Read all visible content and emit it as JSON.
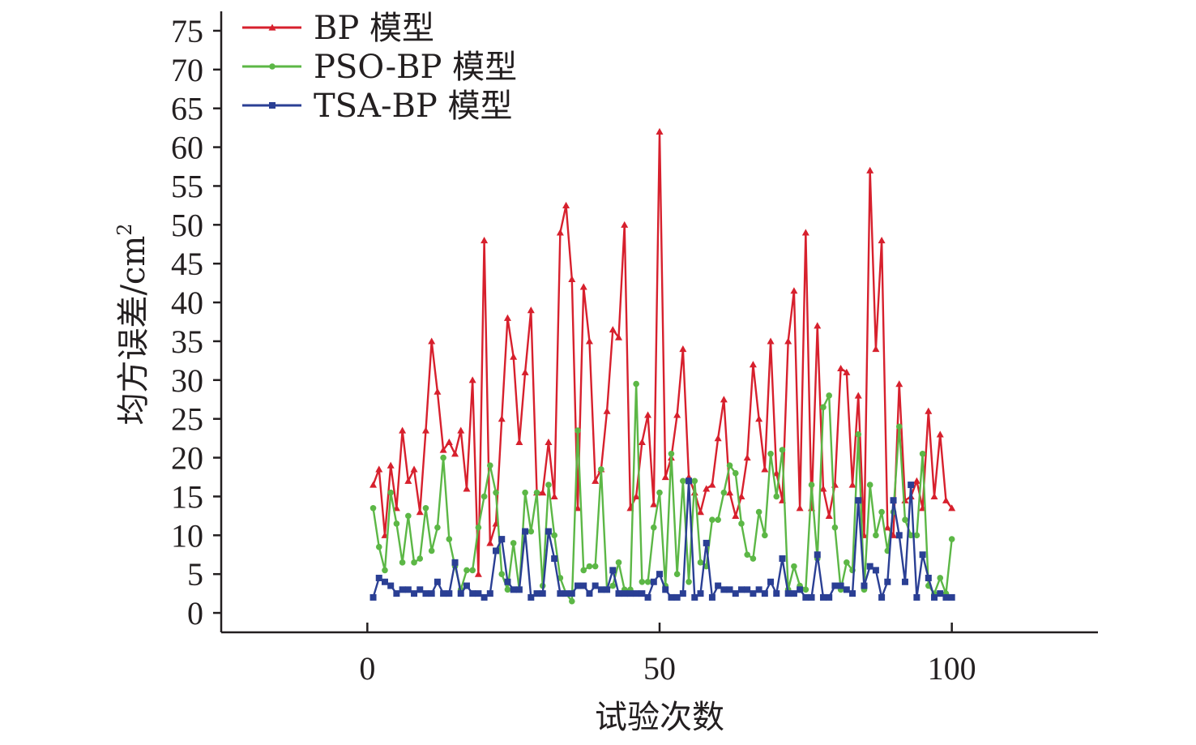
{
  "chart_data": {
    "type": "line",
    "title": "",
    "xlabel": "试验次数",
    "ylabel": "均方误差/cm",
    "ylabel_superscript": "2",
    "xlim": [
      -25,
      125
    ],
    "ylim": [
      -2.5,
      77.5
    ],
    "xticks": [
      0,
      50,
      100
    ],
    "yticks": [
      0,
      5,
      10,
      15,
      20,
      25,
      30,
      35,
      40,
      45,
      50,
      55,
      60,
      65,
      70,
      75
    ],
    "legend_position": "top-left",
    "series": [
      {
        "name": "BP 模型",
        "color": "#d7202d",
        "marker": "triangle",
        "x": [
          1,
          2,
          3,
          4,
          5,
          6,
          7,
          8,
          9,
          10,
          11,
          12,
          13,
          14,
          15,
          16,
          17,
          18,
          19,
          20,
          21,
          22,
          23,
          24,
          25,
          26,
          27,
          28,
          29,
          30,
          31,
          32,
          33,
          34,
          35,
          36,
          37,
          38,
          39,
          40,
          41,
          42,
          43,
          44,
          45,
          46,
          47,
          48,
          49,
          50,
          51,
          52,
          53,
          54,
          55,
          56,
          57,
          58,
          59,
          60,
          61,
          62,
          63,
          64,
          65,
          66,
          67,
          68,
          69,
          70,
          71,
          72,
          73,
          74,
          75,
          76,
          77,
          78,
          79,
          80,
          81,
          82,
          83,
          84,
          85,
          86,
          87,
          88,
          89,
          90,
          91,
          92,
          93,
          94,
          95,
          96,
          97,
          98,
          99,
          100
        ],
        "values": [
          16.5,
          18.5,
          10,
          19,
          13.5,
          23.5,
          17,
          18.5,
          13,
          23.5,
          35,
          28.5,
          21,
          22,
          20.5,
          23.5,
          16,
          30,
          5,
          48,
          9,
          11.5,
          25,
          38,
          33,
          22,
          31,
          39,
          15.5,
          15.5,
          22,
          15,
          49,
          52.5,
          43,
          13.5,
          42,
          35,
          17,
          18.5,
          26,
          36.5,
          35.5,
          50,
          13.5,
          15,
          22,
          25.5,
          14,
          62,
          17.5,
          20,
          25.5,
          34,
          17.5,
          15.5,
          13,
          16,
          16.5,
          22.5,
          27.5,
          15.5,
          12.5,
          15,
          20,
          32,
          25,
          18.5,
          35,
          18,
          14.5,
          35,
          41.5,
          13.5,
          49,
          13.5,
          37,
          16,
          12.5,
          16.5,
          31.5,
          31,
          16.5,
          28,
          10,
          57,
          34,
          48,
          11,
          10,
          29.5,
          14.5,
          15,
          17,
          13.5,
          26,
          15,
          23,
          14.5,
          13.5
        ]
      },
      {
        "name": "PSO-BP 模型",
        "color": "#5cb746",
        "marker": "circle",
        "x": [
          1,
          2,
          3,
          4,
          5,
          6,
          7,
          8,
          9,
          10,
          11,
          12,
          13,
          14,
          15,
          16,
          17,
          18,
          19,
          20,
          21,
          22,
          23,
          24,
          25,
          26,
          27,
          28,
          29,
          30,
          31,
          32,
          33,
          34,
          35,
          36,
          37,
          38,
          39,
          40,
          41,
          42,
          43,
          44,
          45,
          46,
          47,
          48,
          49,
          50,
          51,
          52,
          53,
          54,
          55,
          56,
          57,
          58,
          59,
          60,
          61,
          62,
          63,
          64,
          65,
          66,
          67,
          68,
          69,
          70,
          71,
          72,
          73,
          74,
          75,
          76,
          77,
          78,
          79,
          80,
          81,
          82,
          83,
          84,
          85,
          86,
          87,
          88,
          89,
          90,
          91,
          92,
          93,
          94,
          95,
          96,
          97,
          98,
          99,
          100
        ],
        "values": [
          13.5,
          8.5,
          5.5,
          15.5,
          11.5,
          6.5,
          12.5,
          6.5,
          7,
          13.5,
          8,
          11,
          20,
          9.5,
          6,
          3,
          5.5,
          5.5,
          11,
          15,
          19,
          15.5,
          5,
          3,
          9,
          3,
          15.5,
          10.5,
          15.5,
          3.5,
          16.5,
          10,
          4.5,
          2.5,
          1.5,
          23.5,
          5.5,
          6,
          6,
          18.5,
          3,
          3.5,
          6.5,
          3,
          3,
          29.5,
          4,
          4,
          11,
          15.5,
          3.5,
          20.5,
          5,
          17,
          4,
          17,
          6.5,
          6,
          12,
          12,
          15.5,
          19,
          18,
          11.5,
          7.5,
          7,
          13,
          10,
          20.5,
          15,
          21,
          3,
          6,
          3.5,
          3,
          16.5,
          7,
          26.5,
          28,
          11,
          3,
          6.5,
          5.5,
          23,
          3,
          16.5,
          10,
          13,
          8,
          13,
          24,
          12,
          10,
          10,
          20.5,
          3.5,
          2.5,
          4.5,
          2.5,
          9.5
        ]
      },
      {
        "name": "TSA-BP 模型",
        "color": "#2a3f94",
        "marker": "square",
        "x": [
          1,
          2,
          3,
          4,
          5,
          6,
          7,
          8,
          9,
          10,
          11,
          12,
          13,
          14,
          15,
          16,
          17,
          18,
          19,
          20,
          21,
          22,
          23,
          24,
          25,
          26,
          27,
          28,
          29,
          30,
          31,
          32,
          33,
          34,
          35,
          36,
          37,
          38,
          39,
          40,
          41,
          42,
          43,
          44,
          45,
          46,
          47,
          48,
          49,
          50,
          51,
          52,
          53,
          54,
          55,
          56,
          57,
          58,
          59,
          60,
          61,
          62,
          63,
          64,
          65,
          66,
          67,
          68,
          69,
          70,
          71,
          72,
          73,
          74,
          75,
          76,
          77,
          78,
          79,
          80,
          81,
          82,
          83,
          84,
          85,
          86,
          87,
          88,
          89,
          90,
          91,
          92,
          93,
          94,
          95,
          96,
          97,
          98,
          99,
          100
        ],
        "values": [
          2,
          4.5,
          4,
          3.5,
          2.5,
          3,
          3,
          2.5,
          3,
          2.5,
          2.5,
          4,
          2.5,
          2.5,
          6.5,
          2.5,
          3.5,
          2.5,
          2.5,
          2,
          2.5,
          8,
          9.5,
          4,
          3,
          3,
          10.5,
          2,
          2.5,
          2.5,
          10.5,
          7,
          2.5,
          2.5,
          2.5,
          3.5,
          3.5,
          2.5,
          3.5,
          3,
          3,
          5.5,
          2.5,
          2.5,
          2.5,
          2.5,
          2.5,
          2,
          4,
          5,
          3,
          2,
          2,
          2.5,
          17,
          2,
          2.5,
          9,
          2,
          3.5,
          3,
          3,
          2.5,
          3,
          3,
          2.5,
          3,
          2.5,
          4,
          2.5,
          7,
          2.5,
          2.5,
          3,
          2,
          2,
          7.5,
          2,
          2,
          3.5,
          3.5,
          3,
          2.5,
          14.5,
          3.5,
          6,
          5.5,
          2,
          4,
          14.5,
          10,
          4,
          16.5,
          2,
          7.5,
          4.5,
          2,
          2.5,
          2,
          2
        ]
      }
    ]
  }
}
